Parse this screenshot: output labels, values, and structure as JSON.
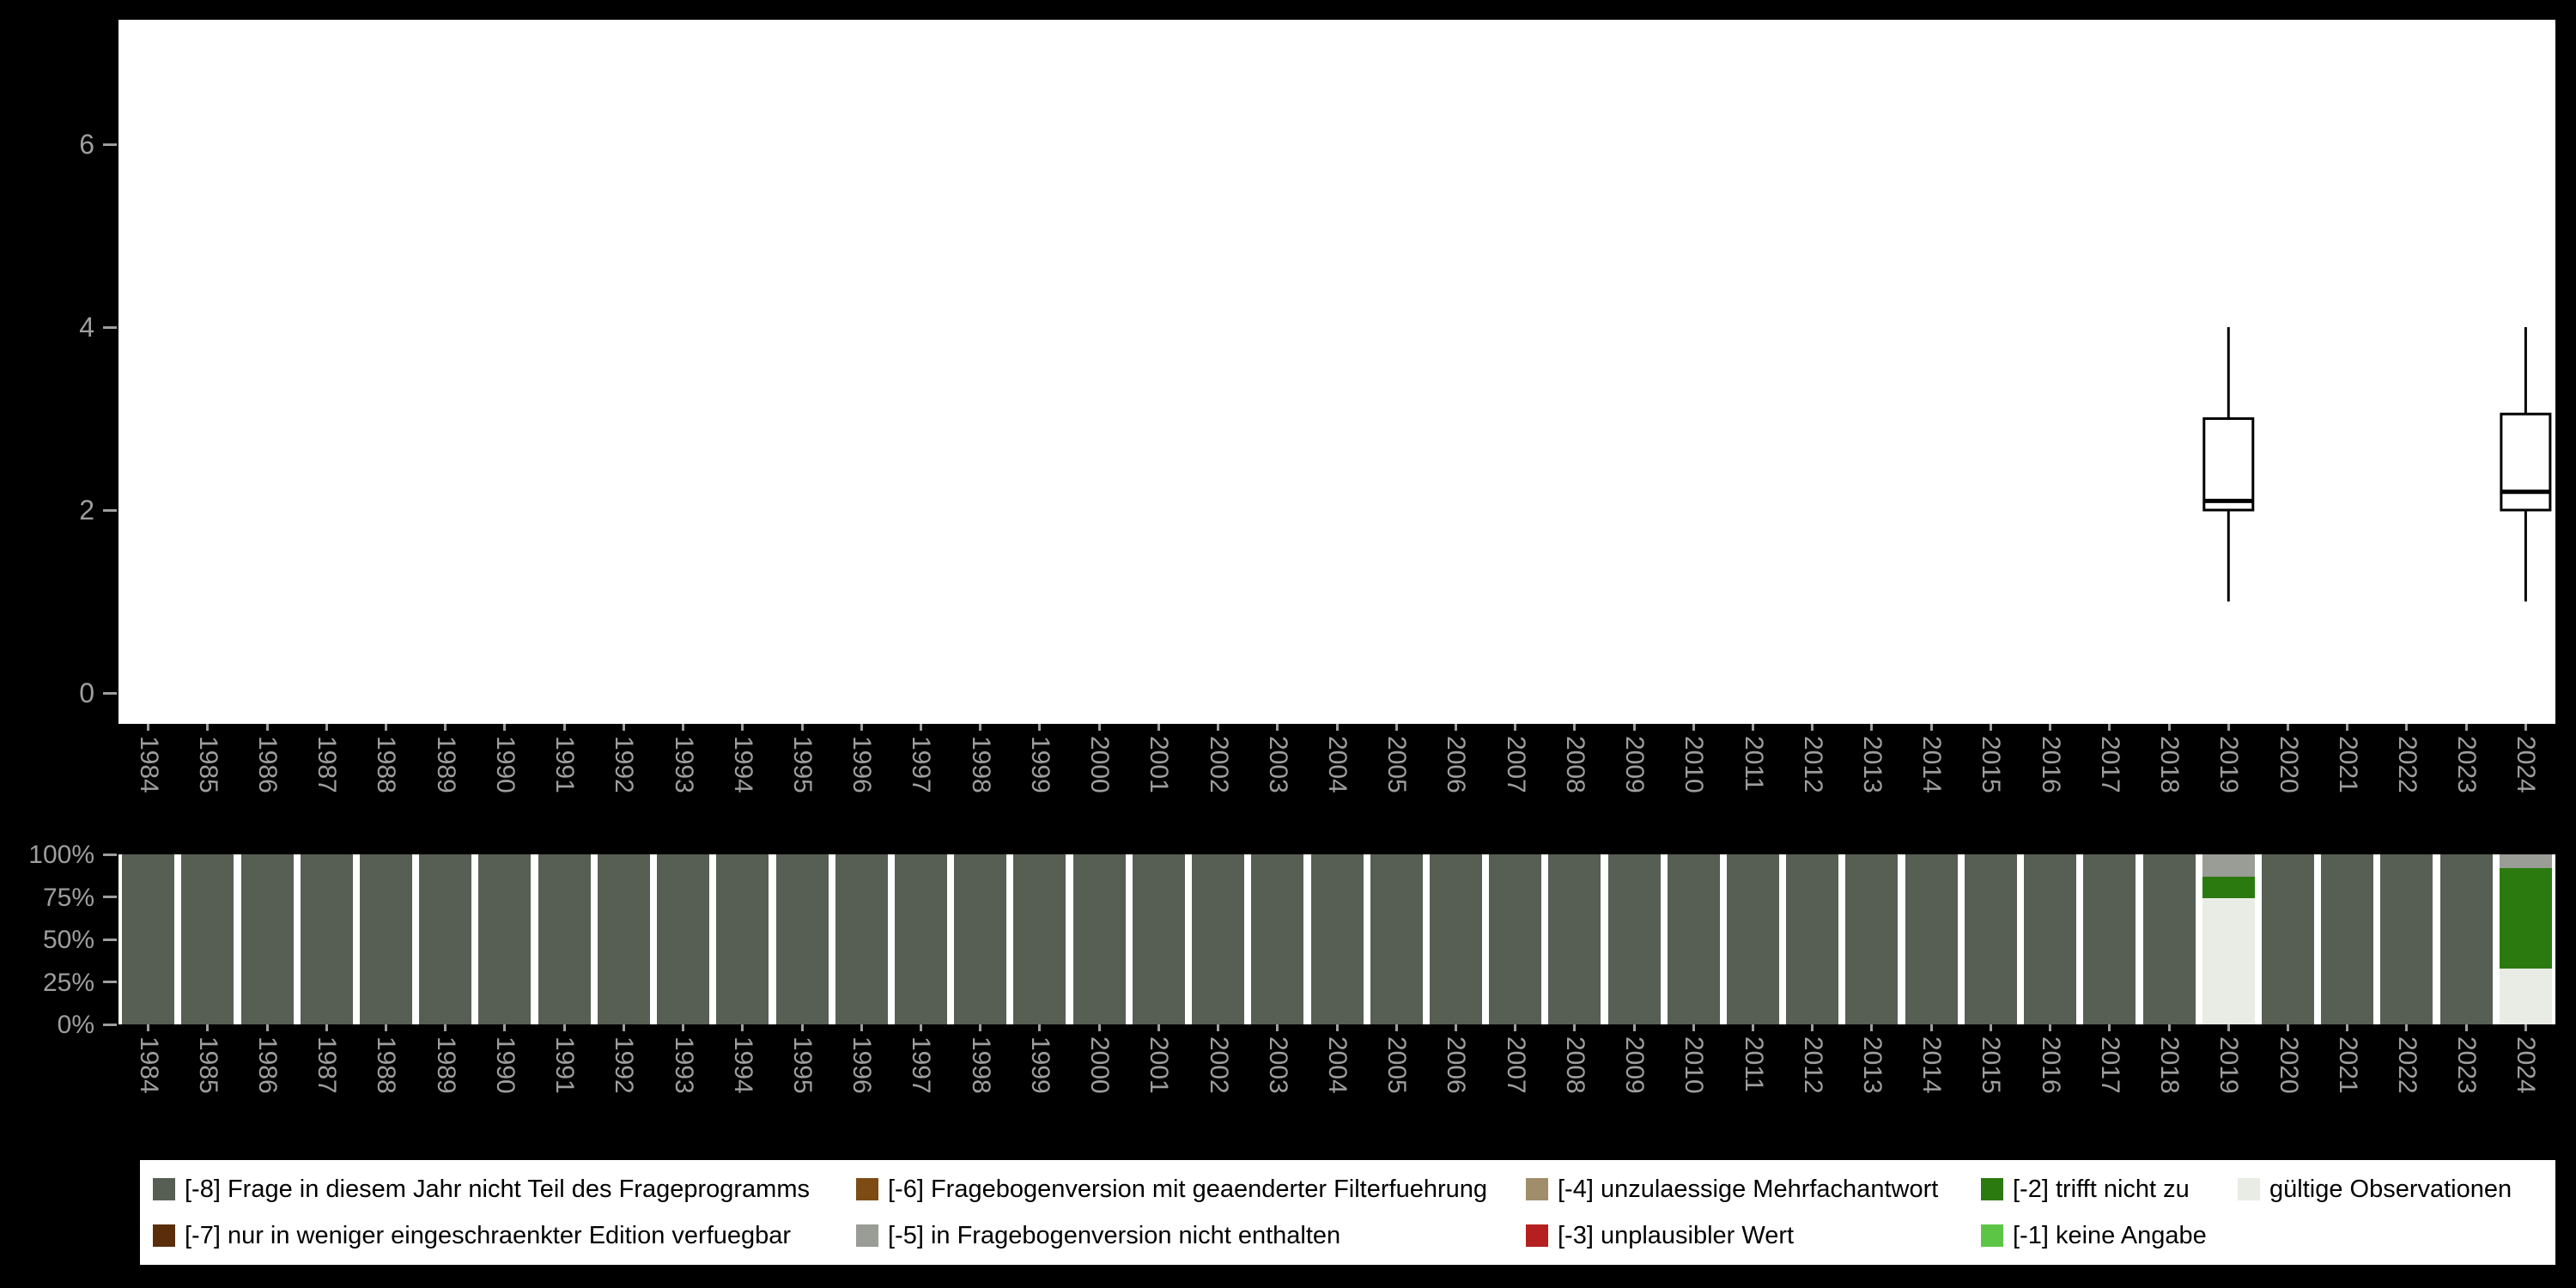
{
  "chart_data": [
    {
      "type": "boxplot",
      "title": "",
      "xlabel": "",
      "ylabel": "",
      "grid": false,
      "ylim": [
        -0.35,
        7.35
      ],
      "y_ticks": [
        0,
        2,
        4,
        6
      ],
      "x_categories": [
        "1984",
        "1985",
        "1986",
        "1987",
        "1988",
        "1989",
        "1990",
        "1991",
        "1992",
        "1993",
        "1994",
        "1995",
        "1996",
        "1997",
        "1998",
        "1999",
        "2000",
        "2001",
        "2002",
        "2003",
        "2004",
        "2005",
        "2006",
        "2007",
        "2008",
        "2009",
        "2010",
        "2011",
        "2012",
        "2013",
        "2014",
        "2015",
        "2016",
        "2017",
        "2018",
        "2019",
        "2020",
        "2021",
        "2022",
        "2023",
        "2024"
      ],
      "series": [
        {
          "x": "2019",
          "whisker_low": 1,
          "q1": 2,
          "median": 2.1,
          "q3": 3,
          "whisker_high": 4
        },
        {
          "x": "2024",
          "whisker_low": 1,
          "q1": 2,
          "median": 2.2,
          "q3": 3.05,
          "whisker_high": 4
        }
      ]
    },
    {
      "type": "bar",
      "stacking": "percent",
      "grid": false,
      "y_ticks": [
        "100%",
        "75%",
        "50%",
        "25%",
        "0%"
      ],
      "x_categories": [
        "1984",
        "1985",
        "1986",
        "1987",
        "1988",
        "1989",
        "1990",
        "1991",
        "1992",
        "1993",
        "1994",
        "1995",
        "1996",
        "1997",
        "1998",
        "1999",
        "2000",
        "2001",
        "2002",
        "2003",
        "2004",
        "2005",
        "2006",
        "2007",
        "2008",
        "2009",
        "2010",
        "2011",
        "2012",
        "2013",
        "2014",
        "2015",
        "2016",
        "2017",
        "2018",
        "2019",
        "2020",
        "2021",
        "2022",
        "2023",
        "2024"
      ],
      "segment_order": "bottom_to_top",
      "bars": [
        {
          "x": "1984",
          "segments": [
            [
              "-8",
              100
            ]
          ]
        },
        {
          "x": "1985",
          "segments": [
            [
              "-8",
              100
            ]
          ]
        },
        {
          "x": "1986",
          "segments": [
            [
              "-8",
              100
            ]
          ]
        },
        {
          "x": "1987",
          "segments": [
            [
              "-8",
              100
            ]
          ]
        },
        {
          "x": "1988",
          "segments": [
            [
              "-8",
              100
            ]
          ]
        },
        {
          "x": "1989",
          "segments": [
            [
              "-8",
              100
            ]
          ]
        },
        {
          "x": "1990",
          "segments": [
            [
              "-8",
              100
            ]
          ]
        },
        {
          "x": "1991",
          "segments": [
            [
              "-8",
              100
            ]
          ]
        },
        {
          "x": "1992",
          "segments": [
            [
              "-8",
              100
            ]
          ]
        },
        {
          "x": "1993",
          "segments": [
            [
              "-8",
              100
            ]
          ]
        },
        {
          "x": "1994",
          "segments": [
            [
              "-8",
              100
            ]
          ]
        },
        {
          "x": "1995",
          "segments": [
            [
              "-8",
              100
            ]
          ]
        },
        {
          "x": "1996",
          "segments": [
            [
              "-8",
              100
            ]
          ]
        },
        {
          "x": "1997",
          "segments": [
            [
              "-8",
              100
            ]
          ]
        },
        {
          "x": "1998",
          "segments": [
            [
              "-8",
              100
            ]
          ]
        },
        {
          "x": "1999",
          "segments": [
            [
              "-8",
              100
            ]
          ]
        },
        {
          "x": "2000",
          "segments": [
            [
              "-8",
              100
            ]
          ]
        },
        {
          "x": "2001",
          "segments": [
            [
              "-8",
              100
            ]
          ]
        },
        {
          "x": "2002",
          "segments": [
            [
              "-8",
              100
            ]
          ]
        },
        {
          "x": "2003",
          "segments": [
            [
              "-8",
              100
            ]
          ]
        },
        {
          "x": "2004",
          "segments": [
            [
              "-8",
              100
            ]
          ]
        },
        {
          "x": "2005",
          "segments": [
            [
              "-8",
              100
            ]
          ]
        },
        {
          "x": "2006",
          "segments": [
            [
              "-8",
              100
            ]
          ]
        },
        {
          "x": "2007",
          "segments": [
            [
              "-8",
              100
            ]
          ]
        },
        {
          "x": "2008",
          "segments": [
            [
              "-8",
              100
            ]
          ]
        },
        {
          "x": "2009",
          "segments": [
            [
              "-8",
              100
            ]
          ]
        },
        {
          "x": "2010",
          "segments": [
            [
              "-8",
              100
            ]
          ]
        },
        {
          "x": "2011",
          "segments": [
            [
              "-8",
              100
            ]
          ]
        },
        {
          "x": "2012",
          "segments": [
            [
              "-8",
              100
            ]
          ]
        },
        {
          "x": "2013",
          "segments": [
            [
              "-8",
              100
            ]
          ]
        },
        {
          "x": "2014",
          "segments": [
            [
              "-8",
              100
            ]
          ]
        },
        {
          "x": "2015",
          "segments": [
            [
              "-8",
              100
            ]
          ]
        },
        {
          "x": "2016",
          "segments": [
            [
              "-8",
              100
            ]
          ]
        },
        {
          "x": "2017",
          "segments": [
            [
              "-8",
              100
            ]
          ]
        },
        {
          "x": "2018",
          "segments": [
            [
              "-8",
              100
            ]
          ]
        },
        {
          "x": "2019",
          "segments": [
            [
              "valid",
              74
            ],
            [
              "-2",
              13
            ],
            [
              "-5",
              13
            ]
          ]
        },
        {
          "x": "2020",
          "segments": [
            [
              "-8",
              100
            ]
          ]
        },
        {
          "x": "2021",
          "segments": [
            [
              "-8",
              100
            ]
          ]
        },
        {
          "x": "2022",
          "segments": [
            [
              "-8",
              100
            ]
          ]
        },
        {
          "x": "2023",
          "segments": [
            [
              "-8",
              100
            ]
          ]
        },
        {
          "x": "2024",
          "segments": [
            [
              "valid",
              33
            ],
            [
              "-2",
              59
            ],
            [
              "-5",
              8
            ]
          ]
        }
      ]
    }
  ],
  "categories": {
    "-8": {
      "label": "[-8] Frage in diesem Jahr nicht Teil des Frageprogramms",
      "color": "#575f54"
    },
    "-7": {
      "label": "[-7] nur in weniger eingeschraenkter Edition verfuegbar",
      "color": "#5a2e0b"
    },
    "-6": {
      "label": "[-6] Fragebogenversion mit geaenderter Filterfuehrung",
      "color": "#7d4b14"
    },
    "-5": {
      "label": "[-5] in Fragebogenversion nicht enthalten",
      "color": "#9a9c96"
    },
    "-4": {
      "label": "[-4] unzulaessige Mehrfachantwort",
      "color": "#a08d6b"
    },
    "-3": {
      "label": "[-3] unplausibler Wert",
      "color": "#b51f1f"
    },
    "-2": {
      "label": "[-2] trifft nicht zu",
      "color": "#2b7a10"
    },
    "-1": {
      "label": "[-1] keine Angabe",
      "color": "#5dc546"
    },
    "valid": {
      "label": "gültige Observationen",
      "color": "#e9ebe5"
    }
  },
  "legend": {
    "order": [
      {
        "id": "-8",
        "row": 0,
        "col": 0
      },
      {
        "id": "-7",
        "row": 1,
        "col": 0
      },
      {
        "id": "-6",
        "row": 0,
        "col": 1
      },
      {
        "id": "-5",
        "row": 1,
        "col": 1
      },
      {
        "id": "-4",
        "row": 0,
        "col": 2
      },
      {
        "id": "-3",
        "row": 1,
        "col": 2
      },
      {
        "id": "-2",
        "row": 0,
        "col": 3
      },
      {
        "id": "-1",
        "row": 1,
        "col": 3
      },
      {
        "id": "valid",
        "row": 0,
        "col": 4
      }
    ]
  },
  "colors": {
    "background": "#000000",
    "panel": "#ffffff",
    "axis_text": "#9e9e9e",
    "box_stroke": "#000000",
    "box_fill": "#ffffff"
  }
}
